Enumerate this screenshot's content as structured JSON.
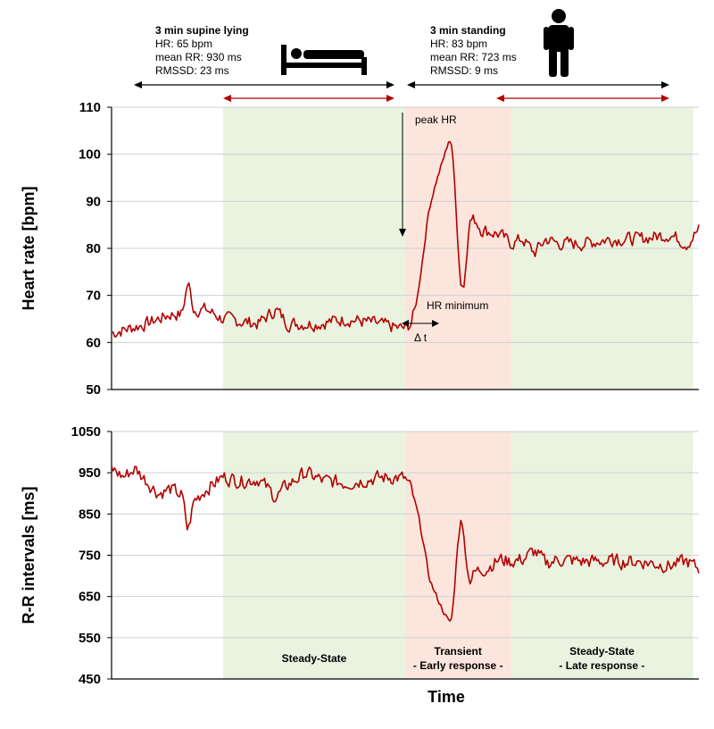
{
  "chart_data": {
    "type": "line",
    "xlabel": "Time",
    "phases": {
      "supine": {
        "title": "3 min supine lying",
        "stats": [
          "HR: 65 bpm",
          "mean RR: 930 ms",
          "RMSSD: 23 ms"
        ],
        "icon": "bed-icon"
      },
      "standing": {
        "title": "3 min standing",
        "stats": [
          "HR: 83 bpm",
          "mean RR: 723 ms",
          "RMSSD: 9 ms"
        ],
        "icon": "standing-person-icon"
      }
    },
    "regions": [
      {
        "label": "Steady-State",
        "sublabel": "",
        "kind": "steady",
        "x_start": 0.19,
        "x_end": 0.5
      },
      {
        "label": "Transient",
        "sublabel": "- Early response -",
        "kind": "transient",
        "x_start": 0.5,
        "x_end": 0.68
      },
      {
        "label": "Steady-State",
        "sublabel": "- Late response -",
        "kind": "steady",
        "x_start": 0.68,
        "x_end": 0.99
      }
    ],
    "colors": {
      "line": "#b30000",
      "steady": "#e9f3e0",
      "transient": "#fbe5dc",
      "grid": "#d0d0d0",
      "arrow_red": "#b30000"
    },
    "panels": [
      {
        "ylabel": "Heart rate [bpm]",
        "ylim": [
          50,
          110
        ],
        "yticks": [
          50,
          60,
          70,
          80,
          90,
          100,
          110
        ],
        "anchors": [
          [
            0.0,
            62
          ],
          [
            0.03,
            63
          ],
          [
            0.06,
            64
          ],
          [
            0.1,
            66
          ],
          [
            0.12,
            66
          ],
          [
            0.13,
            73
          ],
          [
            0.14,
            67
          ],
          [
            0.16,
            67
          ],
          [
            0.19,
            65
          ],
          [
            0.25,
            64
          ],
          [
            0.28,
            67
          ],
          [
            0.3,
            64
          ],
          [
            0.35,
            64
          ],
          [
            0.4,
            65
          ],
          [
            0.45,
            64
          ],
          [
            0.49,
            63
          ],
          [
            0.5,
            63
          ],
          [
            0.51,
            64
          ],
          [
            0.52,
            69
          ],
          [
            0.53,
            78
          ],
          [
            0.54,
            88
          ],
          [
            0.55,
            93
          ],
          [
            0.56,
            97
          ],
          [
            0.57,
            101
          ],
          [
            0.575,
            103.5
          ],
          [
            0.58,
            101
          ],
          [
            0.585,
            93
          ],
          [
            0.59,
            80
          ],
          [
            0.595,
            72
          ],
          [
            0.6,
            72
          ],
          [
            0.61,
            86
          ],
          [
            0.62,
            86
          ],
          [
            0.63,
            84
          ],
          [
            0.66,
            83
          ],
          [
            0.68,
            81
          ],
          [
            0.7,
            82
          ],
          [
            0.72,
            79
          ],
          [
            0.74,
            82
          ],
          [
            0.76,
            81
          ],
          [
            0.8,
            81
          ],
          [
            0.85,
            82
          ],
          [
            0.9,
            82
          ],
          [
            0.95,
            83
          ],
          [
            0.98,
            81
          ],
          [
            1.0,
            84
          ]
        ],
        "noise": 1.3,
        "annotations": {
          "peak": "peak HR",
          "minimum": "HR minimum",
          "delta": "Δ t"
        }
      },
      {
        "ylabel": "R-R intervals [ms]",
        "ylim": [
          450,
          1050
        ],
        "yticks": [
          450,
          550,
          650,
          750,
          850,
          950,
          1050
        ],
        "anchors": [
          [
            0.0,
            960
          ],
          [
            0.02,
            940
          ],
          [
            0.04,
            960
          ],
          [
            0.06,
            930
          ],
          [
            0.08,
            900
          ],
          [
            0.1,
            910
          ],
          [
            0.12,
            895
          ],
          [
            0.13,
            805
          ],
          [
            0.14,
            880
          ],
          [
            0.16,
            910
          ],
          [
            0.19,
            940
          ],
          [
            0.22,
            930
          ],
          [
            0.25,
            935
          ],
          [
            0.28,
            890
          ],
          [
            0.3,
            920
          ],
          [
            0.33,
            950
          ],
          [
            0.36,
            930
          ],
          [
            0.4,
            925
          ],
          [
            0.44,
            935
          ],
          [
            0.48,
            940
          ],
          [
            0.5,
            935
          ],
          [
            0.51,
            910
          ],
          [
            0.52,
            860
          ],
          [
            0.53,
            790
          ],
          [
            0.54,
            700
          ],
          [
            0.55,
            660
          ],
          [
            0.56,
            630
          ],
          [
            0.57,
            600
          ],
          [
            0.575,
            585
          ],
          [
            0.58,
            600
          ],
          [
            0.585,
            690
          ],
          [
            0.59,
            790
          ],
          [
            0.595,
            835
          ],
          [
            0.6,
            800
          ],
          [
            0.605,
            720
          ],
          [
            0.61,
            690
          ],
          [
            0.62,
            710
          ],
          [
            0.64,
            720
          ],
          [
            0.66,
            740
          ],
          [
            0.68,
            735
          ],
          [
            0.7,
            740
          ],
          [
            0.72,
            760
          ],
          [
            0.74,
            730
          ],
          [
            0.76,
            740
          ],
          [
            0.8,
            735
          ],
          [
            0.85,
            735
          ],
          [
            0.9,
            735
          ],
          [
            0.95,
            725
          ],
          [
            0.98,
            735
          ],
          [
            1.0,
            715
          ]
        ],
        "noise": 16
      }
    ]
  }
}
